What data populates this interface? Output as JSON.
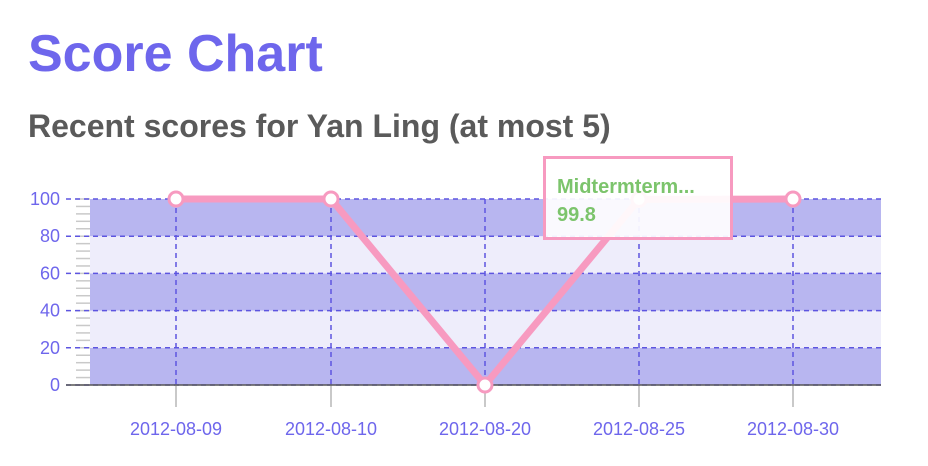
{
  "header": {
    "title": "Score Chart",
    "subtitle": "Recent scores for Yan Ling (at most 5)"
  },
  "tooltip": {
    "label": "Midtermterm...",
    "value": "99.8"
  },
  "colors": {
    "title": "#6e66ec",
    "subtitle": "#5a5a5a",
    "line": "#f79ac0",
    "band_dark": "#b8b6f0",
    "band_light": "#eeedfb",
    "grid": "#5d55e0",
    "tick_label": "#6e66ec",
    "tooltip_text": "#7cc46c"
  },
  "chart_data": {
    "type": "line",
    "categories": [
      "2012-08-09",
      "2012-08-10",
      "2012-08-20",
      "2012-08-25",
      "2012-08-30"
    ],
    "series": [
      {
        "values": [
          100,
          100,
          0,
          99.8,
          100
        ]
      }
    ],
    "ylim": [
      0,
      100
    ],
    "yticks": [
      0,
      20,
      40,
      60,
      80,
      100
    ],
    "grid": true
  }
}
